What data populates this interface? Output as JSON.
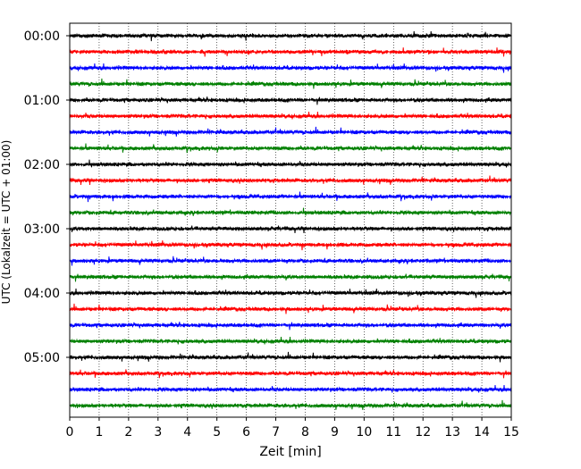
{
  "chart_data": {
    "type": "line",
    "chart_kind": "helicorder seismogram",
    "xlabel": "Zeit  [min]",
    "ylabel": "UTC (Lokalzeit = UTC + 01:00)",
    "xlim": [
      0,
      15
    ],
    "x_ticks": [
      "0",
      "1",
      "2",
      "3",
      "4",
      "5",
      "6",
      "7",
      "8",
      "9",
      "10",
      "11",
      "12",
      "13",
      "14",
      "15"
    ],
    "y_tick_labels": [
      "00:00",
      "01:00",
      "02:00",
      "03:00",
      "04:00",
      "05:00"
    ],
    "trace_start_times_utc": [
      "00:00",
      "00:15",
      "00:30",
      "00:45",
      "01:00",
      "01:15",
      "01:30",
      "01:45",
      "02:00",
      "02:15",
      "02:30",
      "02:45",
      "03:00",
      "03:15",
      "03:30",
      "03:45",
      "04:00",
      "04:15",
      "04:30",
      "04:45",
      "05:00",
      "05:15",
      "05:30",
      "05:45"
    ],
    "trace_minutes_per_line": 15,
    "trace_colors": [
      "#000000",
      "#ff0000",
      "#0000ff",
      "#008000"
    ],
    "grid": {
      "x": "dotted vertical at each minute",
      "y": "none"
    },
    "legend": "none"
  }
}
